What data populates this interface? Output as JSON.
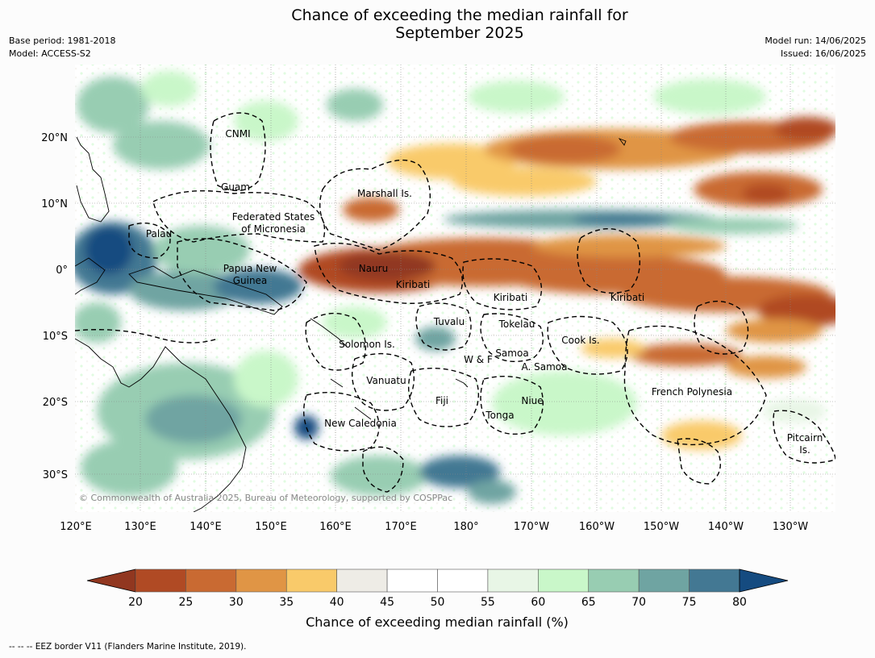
{
  "header": {
    "title_line1": "Chance of exceeding the median rainfall for",
    "title_line2": "September 2025",
    "base_period": "Base period: 1981-2018",
    "model": "Model: ACCESS-S2",
    "model_run": "Model run: 14/06/2025",
    "issued": "Issued: 16/06/2025"
  },
  "map": {
    "lon_labels": [
      "120°E",
      "130°E",
      "140°E",
      "150°E",
      "160°E",
      "170°E",
      "180°",
      "170°W",
      "160°W",
      "150°W",
      "140°W",
      "130°W"
    ],
    "lat_labels": [
      "20°N",
      "10°N",
      "0°",
      "10°S",
      "20°S",
      "30°S"
    ],
    "copyright": "© Commonwealth of Australia 2025, Bureau of Meteorology, supported by COSPPac",
    "regions": [
      {
        "name": "CNMI"
      },
      {
        "name": "Guam"
      },
      {
        "name": "Marshall Is."
      },
      {
        "name": "Federated States"
      },
      {
        "name": "of Micronesia"
      },
      {
        "name": "Palau"
      },
      {
        "name": "Papua New"
      },
      {
        "name": "Guinea"
      },
      {
        "name": "Nauru"
      },
      {
        "name": "Kiribati"
      },
      {
        "name": "Kiribati"
      },
      {
        "name": "Kiribati"
      },
      {
        "name": "Tuvalu"
      },
      {
        "name": "Tokelau"
      },
      {
        "name": "Cook Is."
      },
      {
        "name": "Solomon Is."
      },
      {
        "name": "W & F"
      },
      {
        "name": "Samoa"
      },
      {
        "name": "A. Samoa"
      },
      {
        "name": "Vanuatu"
      },
      {
        "name": "Fiji"
      },
      {
        "name": "Niue"
      },
      {
        "name": "Tonga"
      },
      {
        "name": "French Polynesia"
      },
      {
        "name": "New Caledonia"
      },
      {
        "name": "Pitcairn"
      },
      {
        "name": "Is."
      }
    ]
  },
  "colorbar": {
    "ticks": [
      "20",
      "25",
      "30",
      "35",
      "40",
      "45",
      "50",
      "55",
      "60",
      "65",
      "70",
      "75",
      "80"
    ],
    "colors": [
      "#b04a24",
      "#c96a32",
      "#e09545",
      "#f9ca6a",
      "#eeece6",
      "#ffffff",
      "#ffffff",
      "#e8f6e6",
      "#c9f7c9",
      "#98cdb2",
      "#6fa4a2",
      "#437893"
    ],
    "under_color": "#913720",
    "over_color": "#154b80",
    "label": "Chance of exceeding median rainfall (%)"
  },
  "footer": {
    "legend": "--  --  -- EEZ border V11 (Flanders Marine Institute, 2019)."
  }
}
